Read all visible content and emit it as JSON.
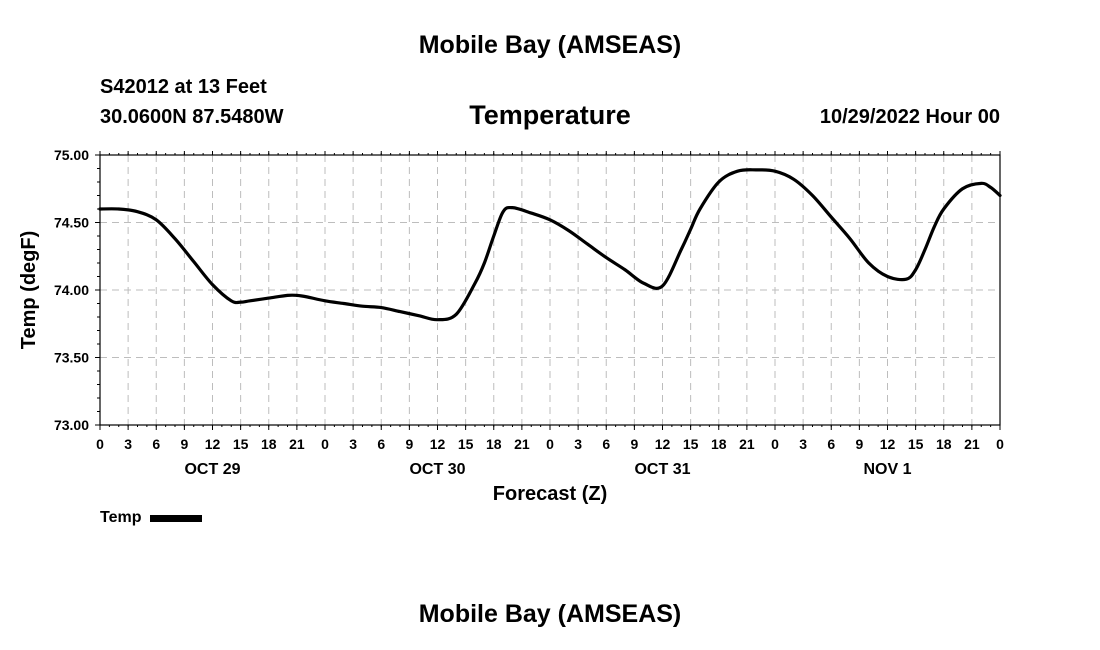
{
  "header": {
    "title": "Mobile Bay (AMSEAS)",
    "station": "S42012 at 13 Feet",
    "coordinates": "30.0600N  87.5480W",
    "chart_title": "Temperature",
    "forecast_time": "10/29/2022 Hour 00"
  },
  "footer": {
    "title": "Mobile Bay (AMSEAS)"
  },
  "legend": {
    "label": "Temp"
  },
  "chart_data": {
    "type": "line",
    "title": "Temperature",
    "xlabel": "Forecast (Z)",
    "ylabel": "Temp (degF)",
    "ylim": [
      73.0,
      75.0
    ],
    "xlim_hours": [
      0,
      96
    ],
    "grid": true,
    "legend_position": "bottom-left",
    "y_ticks": [
      "73.00",
      "73.50",
      "74.00",
      "74.50",
      "75.00"
    ],
    "x_tick_labels": [
      "0",
      "3",
      "6",
      "9",
      "12",
      "15",
      "18",
      "21",
      "0",
      "3",
      "6",
      "9",
      "12",
      "15",
      "18",
      "21",
      "0",
      "3",
      "6",
      "9",
      "12",
      "15",
      "18",
      "21",
      "0",
      "3",
      "6",
      "9",
      "12",
      "15",
      "18",
      "21",
      "0"
    ],
    "day_labels": [
      {
        "hour": 12,
        "label": "OCT 29"
      },
      {
        "hour": 36,
        "label": "OCT 30"
      },
      {
        "hour": 60,
        "label": "OCT 31"
      },
      {
        "hour": 84,
        "label": "NOV 1"
      }
    ],
    "series": [
      {
        "name": "Temp",
        "x_hours": [
          0,
          2,
          4,
          6,
          8,
          10,
          12,
          14,
          15,
          16,
          18,
          20,
          21,
          22,
          24,
          26,
          28,
          30,
          32,
          34,
          36,
          38,
          40,
          41,
          42,
          43,
          44,
          46,
          48,
          50,
          52,
          54,
          56,
          58,
          60,
          62,
          63,
          64,
          66,
          68,
          70,
          72,
          74,
          76,
          78,
          80,
          82,
          84,
          86,
          87,
          88,
          89,
          90,
          92,
          94,
          95,
          96
        ],
        "values": [
          74.6,
          74.6,
          74.58,
          74.52,
          74.38,
          74.21,
          74.04,
          73.92,
          73.91,
          73.92,
          73.94,
          73.96,
          73.96,
          73.95,
          73.92,
          73.9,
          73.88,
          73.87,
          73.84,
          73.81,
          73.78,
          73.82,
          74.05,
          74.2,
          74.4,
          74.58,
          74.61,
          74.57,
          74.52,
          74.44,
          74.34,
          74.24,
          74.15,
          74.05,
          74.03,
          74.3,
          74.45,
          74.6,
          74.8,
          74.88,
          74.89,
          74.88,
          74.82,
          74.7,
          74.54,
          74.38,
          74.2,
          74.1,
          74.08,
          74.15,
          74.3,
          74.47,
          74.6,
          74.75,
          74.79,
          74.76,
          74.7
        ]
      }
    ]
  }
}
